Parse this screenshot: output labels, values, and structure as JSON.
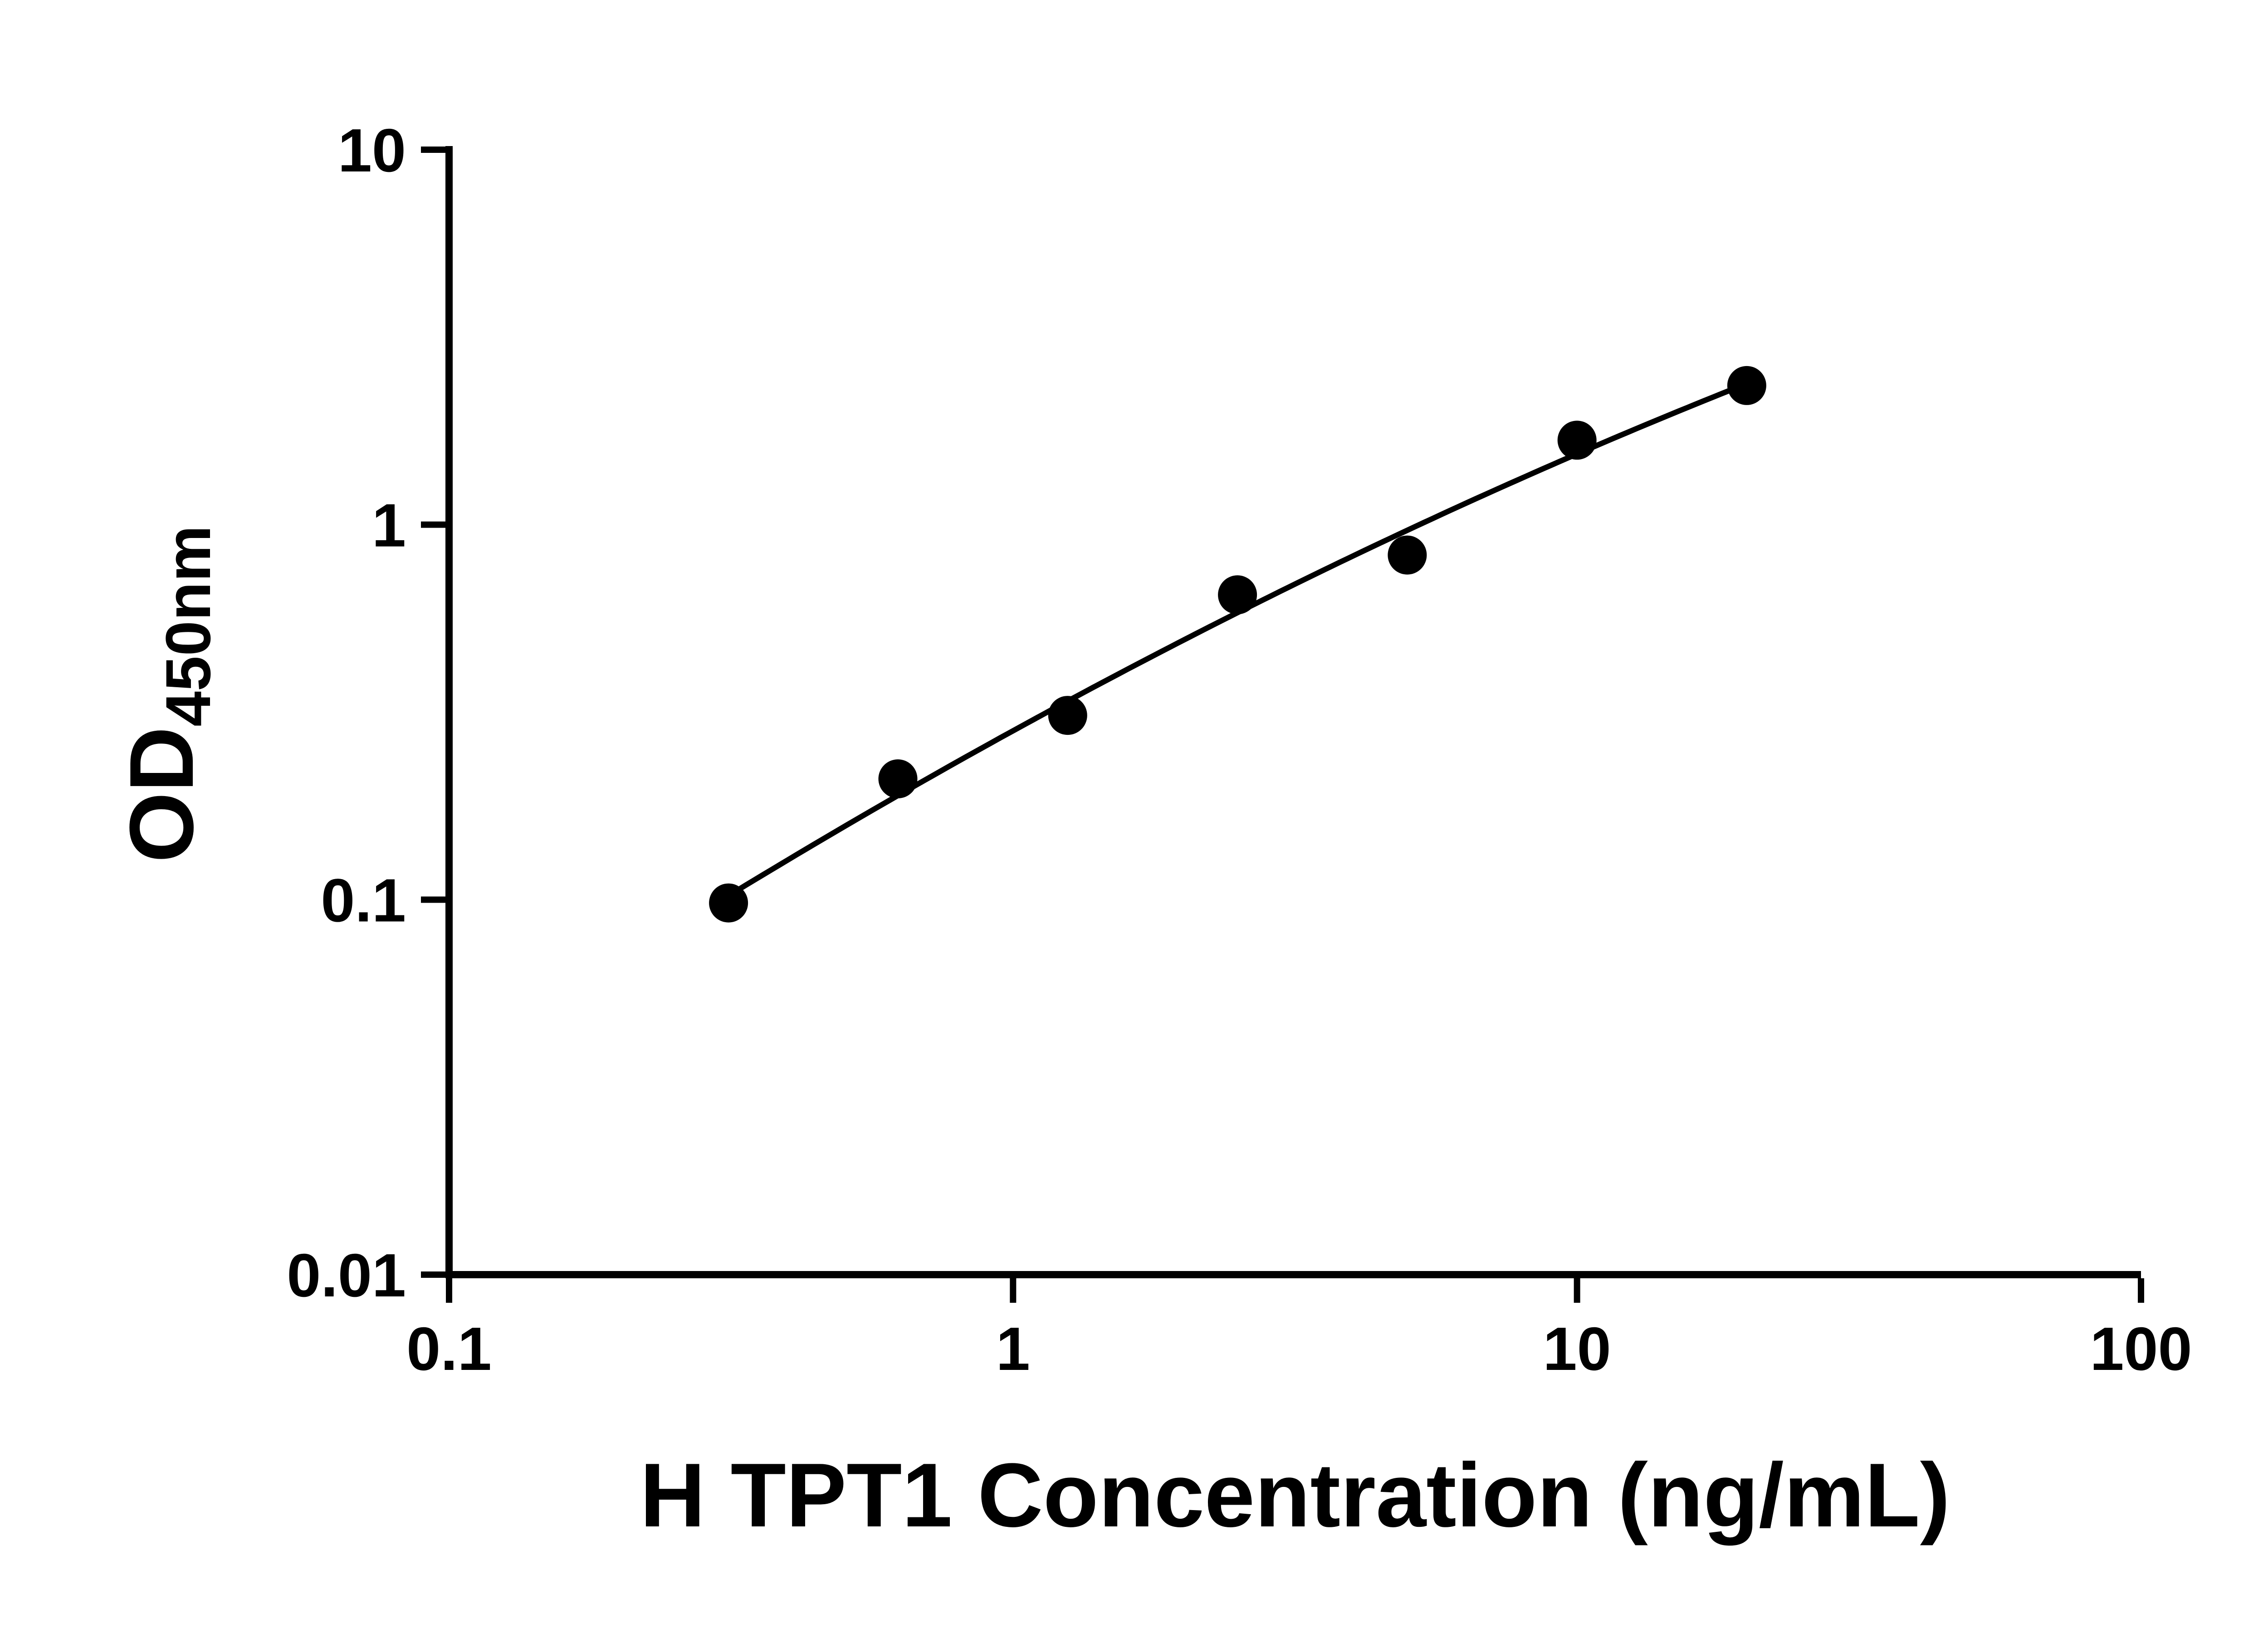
{
  "figure": {
    "background": "#ffffff",
    "description": "ELISA standard curve, log-log scatter plot with smooth fitted line"
  },
  "chart_data": {
    "type": "scatter",
    "title": "",
    "xlabel": "H TPT1 Concentration (ng/mL)",
    "ylabel_main": "OD",
    "ylabel_sub": "450nm",
    "x_scale": "log",
    "y_scale": "log",
    "xlim": [
      0.1,
      100
    ],
    "ylim": [
      0.01,
      10
    ],
    "x_ticks": [
      0.1,
      1,
      10,
      100
    ],
    "x_tick_labels": [
      "0.1",
      "1",
      "10",
      "100"
    ],
    "y_ticks": [
      0.01,
      0.1,
      1,
      10
    ],
    "y_tick_labels": [
      "0.01",
      "0.1",
      "1",
      "10"
    ],
    "grid": false,
    "legend": "none",
    "axis_color": "#000000",
    "marker_color": "#000000",
    "line_color": "#000000",
    "curve": "smooth fit line through data points",
    "points": [
      {
        "x": 0.313,
        "y": 0.098
      },
      {
        "x": 0.625,
        "y": 0.21
      },
      {
        "x": 1.25,
        "y": 0.31
      },
      {
        "x": 2.5,
        "y": 0.65
      },
      {
        "x": 5,
        "y": 0.83
      },
      {
        "x": 10,
        "y": 1.68
      },
      {
        "x": 20,
        "y": 2.35
      }
    ]
  }
}
